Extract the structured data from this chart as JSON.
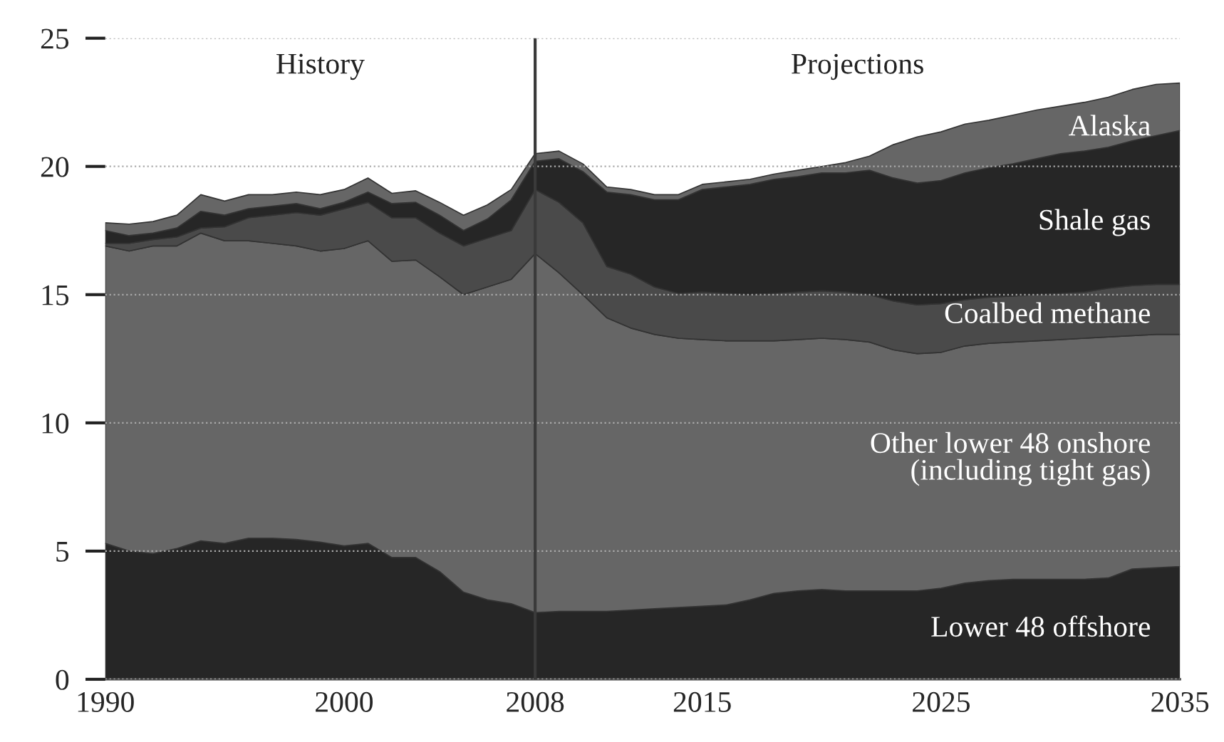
{
  "chart_data": {
    "type": "area",
    "stacked": true,
    "x": [
      1990,
      1991,
      1992,
      1993,
      1994,
      1995,
      1996,
      1997,
      1998,
      1999,
      2000,
      2001,
      2002,
      2003,
      2004,
      2005,
      2006,
      2007,
      2008,
      2009,
      2010,
      2011,
      2012,
      2013,
      2014,
      2015,
      2016,
      2017,
      2018,
      2019,
      2020,
      2021,
      2022,
      2023,
      2024,
      2025,
      2026,
      2027,
      2028,
      2029,
      2030,
      2031,
      2032,
      2033,
      2034,
      2035
    ],
    "series": [
      {
        "name": "Lower 48 offshore",
        "color": "#262626",
        "values": [
          5.3,
          5.0,
          4.9,
          5.1,
          5.4,
          5.3,
          5.5,
          5.5,
          5.45,
          5.35,
          5.2,
          5.3,
          4.75,
          4.75,
          4.2,
          3.4,
          3.1,
          2.95,
          2.6,
          2.65,
          2.65,
          2.65,
          2.7,
          2.75,
          2.8,
          2.85,
          2.9,
          3.1,
          3.35,
          3.45,
          3.5,
          3.45,
          3.45,
          3.45,
          3.45,
          3.55,
          3.75,
          3.85,
          3.9,
          3.9,
          3.9,
          3.9,
          3.95,
          4.3,
          4.35,
          4.4
        ]
      },
      {
        "name": "Other lower 48 onshore\n(including tight gas)",
        "color": "#666666",
        "values": [
          11.6,
          11.7,
          12.0,
          11.8,
          12.0,
          11.8,
          11.6,
          11.5,
          11.45,
          11.35,
          11.6,
          11.8,
          11.55,
          11.6,
          11.5,
          11.6,
          12.2,
          12.65,
          14.0,
          13.2,
          12.35,
          11.45,
          11.0,
          10.7,
          10.5,
          10.4,
          10.3,
          10.1,
          9.85,
          9.8,
          9.8,
          9.8,
          9.7,
          9.4,
          9.25,
          9.2,
          9.25,
          9.25,
          9.25,
          9.3,
          9.35,
          9.4,
          9.4,
          9.1,
          9.1,
          9.05
        ]
      },
      {
        "name": "Coalbed methane",
        "color": "#4a4a4a",
        "values": [
          0.1,
          0.3,
          0.25,
          0.35,
          0.2,
          0.55,
          0.9,
          1.1,
          1.3,
          1.4,
          1.55,
          1.5,
          1.7,
          1.65,
          1.7,
          1.9,
          1.9,
          1.9,
          2.5,
          2.75,
          2.8,
          2.0,
          2.1,
          1.85,
          1.75,
          1.85,
          1.85,
          1.8,
          1.85,
          1.85,
          1.85,
          1.85,
          1.85,
          1.9,
          1.9,
          1.9,
          1.8,
          1.8,
          1.8,
          1.8,
          1.8,
          1.8,
          1.9,
          1.95,
          1.95,
          1.95
        ]
      },
      {
        "name": "Shale gas",
        "color": "#262626",
        "values": [
          0.5,
          0.3,
          0.25,
          0.35,
          0.65,
          0.45,
          0.35,
          0.35,
          0.35,
          0.25,
          0.25,
          0.4,
          0.55,
          0.6,
          0.7,
          0.6,
          0.75,
          1.2,
          1.1,
          1.7,
          2.0,
          2.9,
          3.1,
          3.4,
          3.65,
          4.0,
          4.15,
          4.3,
          4.45,
          4.5,
          4.6,
          4.65,
          4.85,
          4.8,
          4.75,
          4.8,
          4.95,
          5.05,
          5.15,
          5.3,
          5.45,
          5.5,
          5.5,
          5.65,
          5.8,
          6.0
        ]
      },
      {
        "name": "Alaska",
        "color": "#666666",
        "values": [
          0.3,
          0.45,
          0.45,
          0.5,
          0.65,
          0.55,
          0.55,
          0.45,
          0.45,
          0.55,
          0.5,
          0.55,
          0.4,
          0.45,
          0.5,
          0.6,
          0.55,
          0.4,
          0.3,
          0.3,
          0.3,
          0.2,
          0.2,
          0.2,
          0.2,
          0.2,
          0.2,
          0.2,
          0.2,
          0.25,
          0.25,
          0.4,
          0.55,
          1.3,
          1.8,
          1.9,
          1.9,
          1.85,
          1.9,
          1.9,
          1.85,
          1.9,
          1.95,
          2.0,
          2.0,
          1.85
        ]
      }
    ],
    "xlim": [
      1990,
      2035
    ],
    "xticks": [
      1990,
      2000,
      2008,
      2015,
      2025,
      2035
    ],
    "ylim": [
      0,
      25
    ],
    "yticks": [
      0,
      5,
      10,
      15,
      20,
      25
    ],
    "grid": "y",
    "legend": false,
    "ref_lines": [
      {
        "axis": "x",
        "value": 2008,
        "color": "#3a3a3a"
      }
    ],
    "annotations": [
      "History",
      "Projections"
    ]
  }
}
